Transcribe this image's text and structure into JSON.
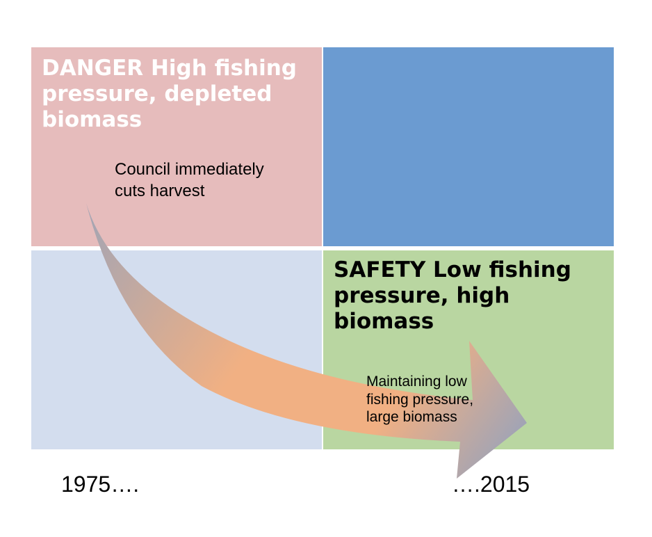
{
  "colors": {
    "danger": "#e6bcbc",
    "high_biomass_high_pressure": "#6b9bd1",
    "low_pressure_low_biomass": "#d3ddee",
    "safety": "#b9d6a1",
    "arrow_orange": "#f1b083",
    "arrow_gray": "#a1a4b5"
  },
  "danger": {
    "title": "DANGER   High fishing\npressure, depleted\nbiomass",
    "note": "Council immediately\ncuts harvest"
  },
  "safety": {
    "title": "SAFETY   Low fishing\npressure, high biomass",
    "note": "Maintaining low\nfishing pressure,\nlarge biomass"
  },
  "timeline": {
    "start": "1975….",
    "end": "….2015"
  }
}
